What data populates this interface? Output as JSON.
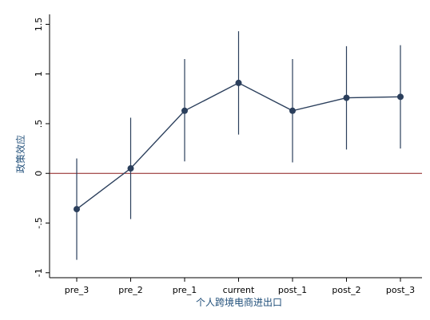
{
  "chart_data": {
    "type": "line",
    "categories": [
      "pre_3",
      "pre_2",
      "pre_1",
      "current",
      "post_1",
      "post_2",
      "post_3"
    ],
    "series": [
      {
        "values": [
          -0.36,
          0.05,
          0.63,
          0.91,
          0.63,
          0.76,
          0.77
        ],
        "ci_lower": [
          -0.87,
          -0.46,
          0.12,
          0.39,
          0.11,
          0.24,
          0.25
        ],
        "ci_upper": [
          0.15,
          0.56,
          1.15,
          1.43,
          1.15,
          1.28,
          1.29
        ]
      }
    ],
    "xlabel": "个人跨境电商进出口",
    "ylabel": "政策效应",
    "ylim": [
      -1.05,
      1.6
    ],
    "yticks": [
      -1,
      -0.5,
      0,
      0.5,
      1,
      1.5
    ],
    "ytick_labels": [
      "-1",
      "-.5",
      "0",
      ".5",
      "1",
      "1.5"
    ],
    "reference_line": {
      "y": 0,
      "color": "#8b1a1a"
    },
    "colors": {
      "line": "#2b3f5c",
      "marker": "#2b3f5c",
      "axis_title": "#1f4e79"
    },
    "grid": false,
    "legend": "none"
  }
}
